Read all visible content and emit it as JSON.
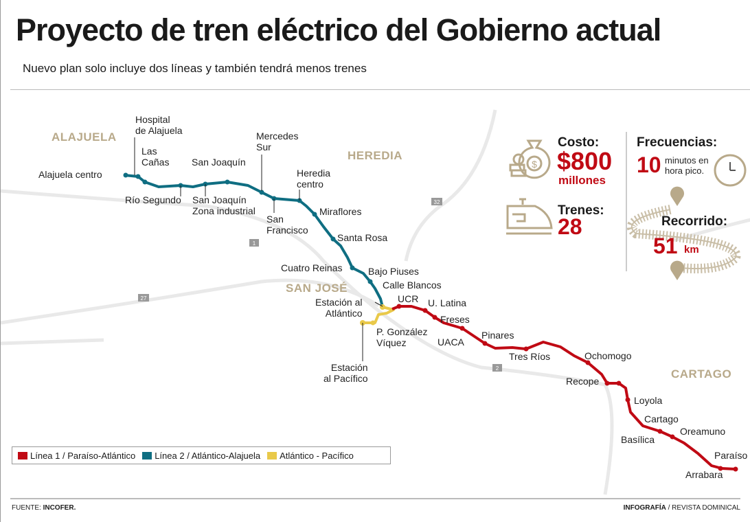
{
  "header": {
    "title": "Proyecto de tren eléctrico del Gobierno actual",
    "subtitle": "Nuevo plan solo incluye dos líneas y también tendrá menos trenes"
  },
  "provinces": {
    "alajuela": "ALAJUELA",
    "heredia": "HEREDIA",
    "san_jose": "SAN JOSÉ",
    "cartago": "CARTAGO"
  },
  "roads": [
    "1",
    "27",
    "32",
    "2"
  ],
  "stations": {
    "alajuela_centro": "Alajuela centro",
    "hospital": "Hospital\nde Alajuela",
    "las_canas": "Las\nCañas",
    "rio_segundo": "Río Segundo",
    "san_joaquin": "San Joaquín",
    "san_joaquin_zona": "San Joaquín\nZona industrial",
    "mercedes_sur": "Mercedes\nSur",
    "san_francisco": "San\nFrancisco",
    "heredia_centro": "Heredia\ncentro",
    "miraflores": "Miraflores",
    "santa_rosa": "Santa Rosa",
    "cuatro_reinas": "Cuatro Reinas",
    "bajo_piuses": "Bajo Piuses",
    "calle_blancos": "Calle Blancos",
    "estacion_atlantico": "Estación al\nAtlántico",
    "ucr": "UCR",
    "u_latina": "U. Latina",
    "freses": "Freses",
    "p_gonzalez": "P. González\nVíquez",
    "estacion_pacifico": "Estación\nal Pacífico",
    "uaca": "UACA",
    "pinares": "Pinares",
    "tres_rios": "Tres Ríos",
    "ochomogo": "Ochomogo",
    "recope": "Recope",
    "loyola": "Loyola",
    "cartago": "Cartago",
    "oreamuno": "Oreamuno",
    "basilica": "Basílica",
    "paraiso": "Paraíso",
    "arrabara": "Arrabara"
  },
  "stats": {
    "cost_label": "Costo:",
    "cost_value": "$800",
    "cost_unit": "millones",
    "trains_label": "Trenes:",
    "trains_value": "28",
    "freq_label": "Frecuencias:",
    "freq_value": "10",
    "freq_text": "minutos en\nhora pico.",
    "route_label": "Recorrido:",
    "route_value": "51",
    "route_unit": "km"
  },
  "legend": [
    {
      "label": "Línea 1 / Paraíso-Atlántico",
      "color": "#c00a14"
    },
    {
      "label": "Línea 2 / Atlántico-Alajuela",
      "color": "#0f6e82"
    },
    {
      "label": "Atlántico - Pacífico",
      "color": "#e9c94a"
    }
  ],
  "footer": {
    "source_prefix": "FUENTE: ",
    "source": "INCOFER.",
    "credit_bold": "INFOGRAFÍA",
    "credit_rest": " / REVISTA DOMINICAL"
  },
  "colors": {
    "line1": "#c00a14",
    "line2": "#0f6e82",
    "line3": "#e9c94a",
    "accent": "#c00a14",
    "beige": "#b8a98a"
  }
}
